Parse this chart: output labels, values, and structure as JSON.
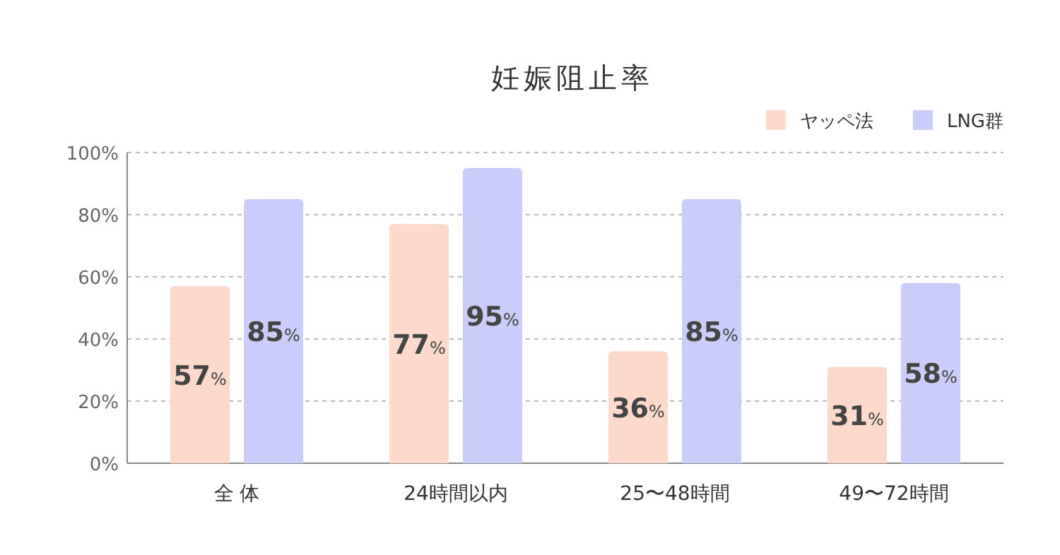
{
  "chart_data": {
    "type": "bar",
    "title": "妊娠阻止率",
    "categories": [
      "全 体",
      "24時間以内",
      "25〜48時間",
      "49〜72時間"
    ],
    "series": [
      {
        "name": "ヤッペ法",
        "color": "#fdd9cb",
        "values": [
          57,
          77,
          36,
          31
        ],
        "value_labels": [
          "57%",
          "77%",
          "36%",
          "31%"
        ]
      },
      {
        "name": "LNG群",
        "color": "#cacdf9",
        "values": [
          85,
          95,
          85,
          58
        ],
        "value_labels": [
          "85%",
          "95%",
          "85%",
          "58%"
        ]
      }
    ],
    "ylim": [
      0,
      100
    ],
    "yticks": [
      {
        "value": 0,
        "label": "0%"
      },
      {
        "value": 20,
        "label": "20%"
      },
      {
        "value": 40,
        "label": "40%"
      },
      {
        "value": 60,
        "label": "60%"
      },
      {
        "value": 80,
        "label": "80%"
      },
      {
        "value": 100,
        "label": "100%"
      }
    ],
    "grid": "y",
    "legend": "top right"
  }
}
